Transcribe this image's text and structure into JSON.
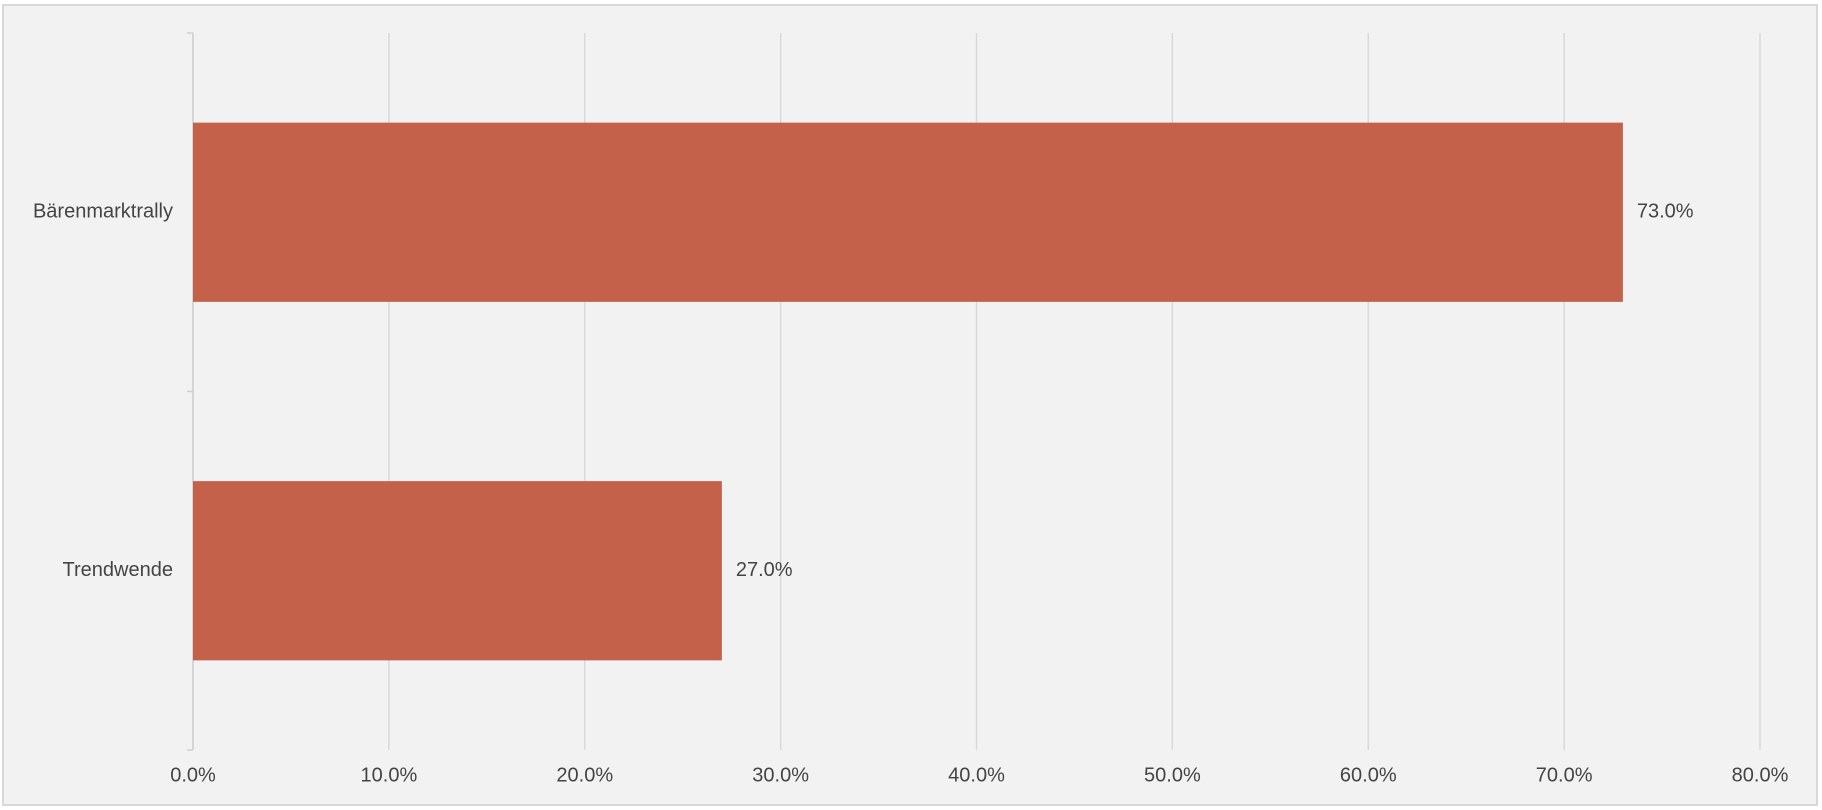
{
  "chart_data": {
    "type": "hbar",
    "categories": [
      "Bärenmarktrally",
      "Trendwende"
    ],
    "values": [
      73.0,
      27.0
    ],
    "value_labels": [
      "73.0%",
      "27.0%"
    ],
    "color": "#c4614a",
    "xlim": [
      0,
      80
    ],
    "xticks": [
      {
        "value": 0,
        "label": "0.0%"
      },
      {
        "value": 10,
        "label": "10.0%"
      },
      {
        "value": 20,
        "label": "20.0%"
      },
      {
        "value": 30,
        "label": "30.0%"
      },
      {
        "value": 40,
        "label": "40.0%"
      },
      {
        "value": 50,
        "label": "50.0%"
      },
      {
        "value": 60,
        "label": "60.0%"
      },
      {
        "value": 70,
        "label": "70.0%"
      },
      {
        "value": 80,
        "label": "80.0%"
      }
    ],
    "grid": true
  }
}
